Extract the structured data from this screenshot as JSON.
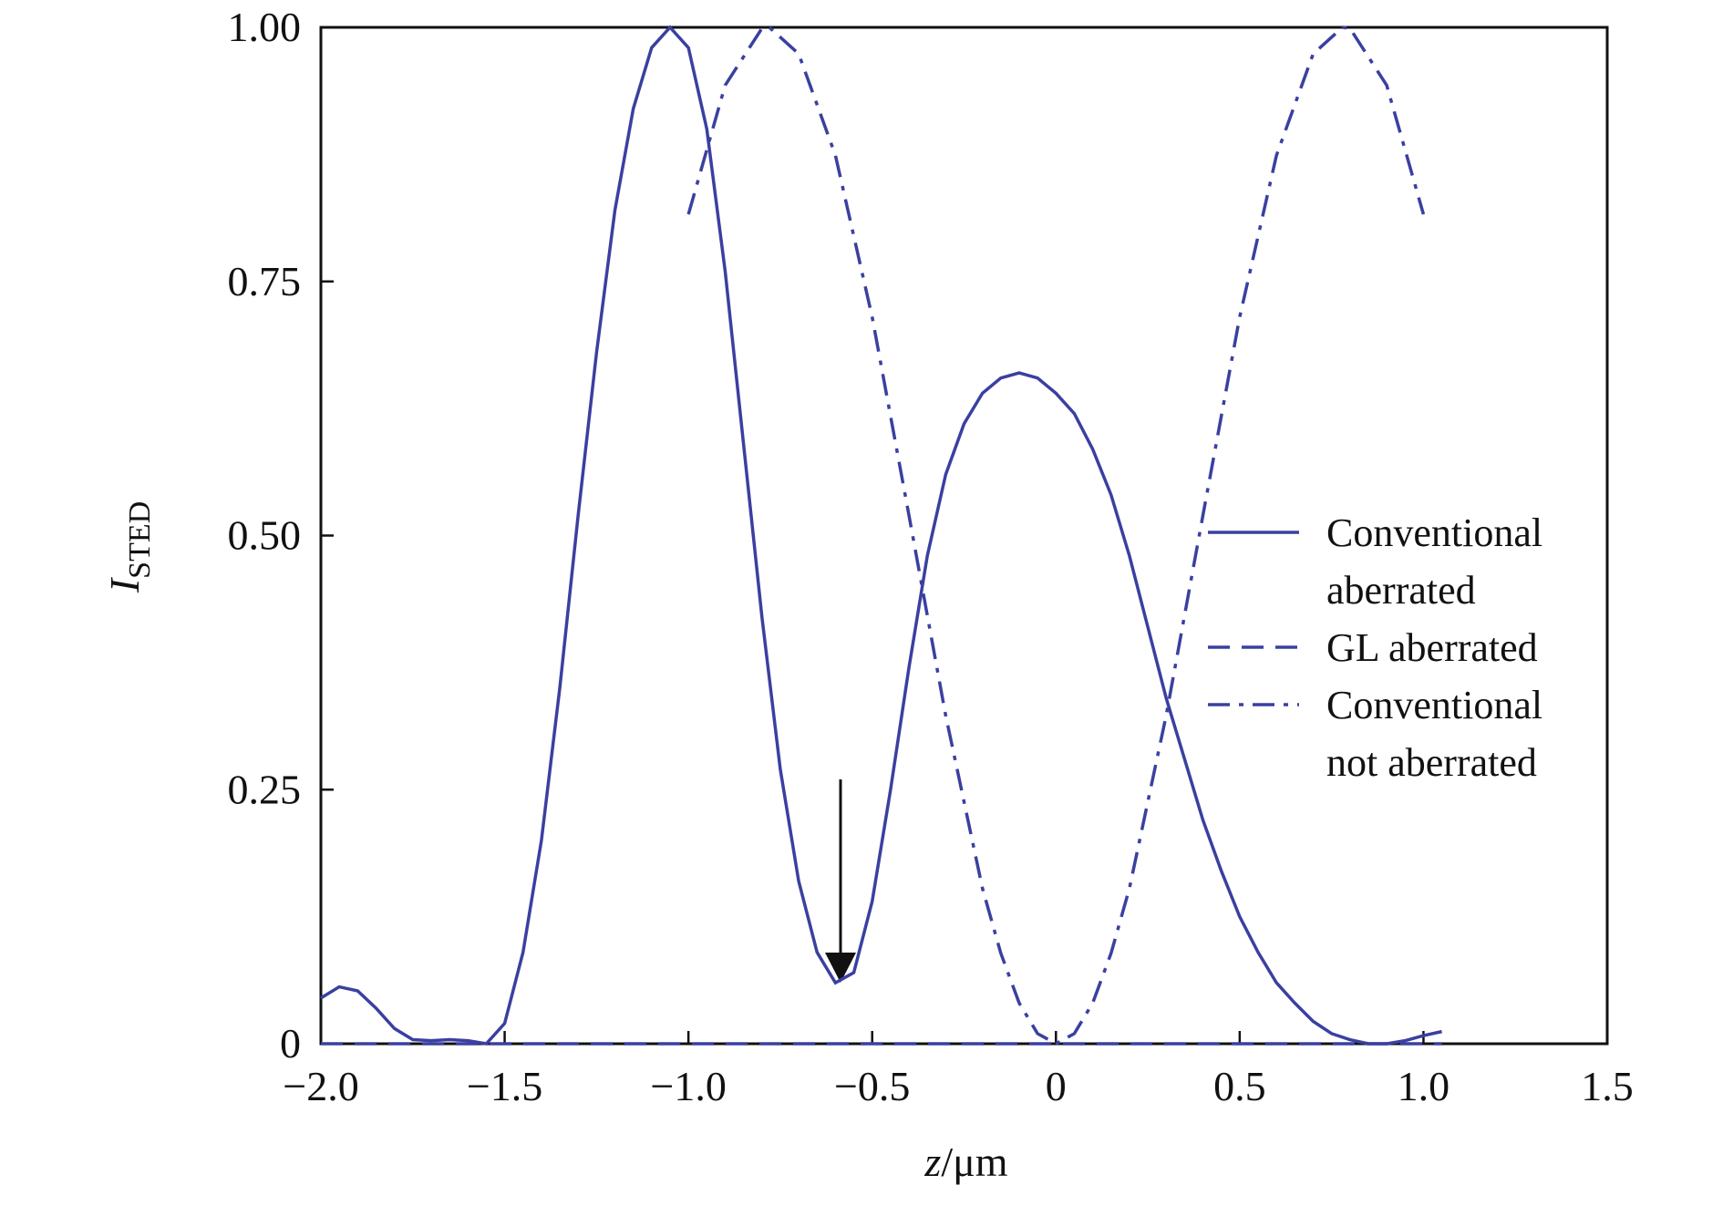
{
  "chart_data": {
    "type": "line",
    "x_label": [
      "z",
      "/μm"
    ],
    "y_label": [
      "I",
      "STED"
    ],
    "xlim": [
      -2.0,
      1.5
    ],
    "ylim": [
      0,
      1.0
    ],
    "xticks": [
      {
        "value": -2.0,
        "label": "−2.0"
      },
      {
        "value": -1.5,
        "label": "−1.5"
      },
      {
        "value": -1.0,
        "label": "−1.0"
      },
      {
        "value": -0.5,
        "label": "−0.5"
      },
      0,
      0.5,
      {
        "value": 1.0,
        "label": "1.0"
      },
      1.5
    ],
    "yticks": [
      0,
      0.25,
      {
        "value": 0.5,
        "label": "0.50"
      },
      0.75,
      {
        "value": 1.0,
        "label": "1.00"
      }
    ],
    "legend": "right",
    "series": [
      {
        "name": "Conventional\naberrated",
        "color": "#3a40a0",
        "line_style": "solid",
        "x": [
          -2.0,
          -1.95,
          -1.9,
          -1.85,
          -1.8,
          -1.75,
          -1.7,
          -1.65,
          -1.6,
          -1.55,
          -1.5,
          -1.45,
          -1.4,
          -1.35,
          -1.3,
          -1.25,
          -1.2,
          -1.15,
          -1.1,
          -1.05,
          -1.0,
          -0.95,
          -0.9,
          -0.85,
          -0.8,
          -0.75,
          -0.7,
          -0.65,
          -0.6,
          -0.55,
          -0.5,
          -0.45,
          -0.4,
          -0.35,
          -0.3,
          -0.25,
          -0.2,
          -0.15,
          -0.1,
          -0.05,
          0.0,
          0.05,
          0.1,
          0.15,
          0.2,
          0.25,
          0.3,
          0.35,
          0.4,
          0.45,
          0.5,
          0.55,
          0.6,
          0.65,
          0.7,
          0.75,
          0.8,
          0.85,
          0.9,
          0.95,
          1.0,
          1.05
        ],
        "values": [
          0.045,
          0.056,
          0.052,
          0.035,
          0.015,
          0.004,
          0.003,
          0.004,
          0.003,
          0.0,
          0.02,
          0.09,
          0.2,
          0.35,
          0.52,
          0.68,
          0.82,
          0.92,
          0.98,
          1.0,
          0.98,
          0.9,
          0.76,
          0.59,
          0.42,
          0.27,
          0.16,
          0.09,
          0.06,
          0.07,
          0.14,
          0.25,
          0.37,
          0.48,
          0.56,
          0.61,
          0.64,
          0.655,
          0.66,
          0.655,
          0.64,
          0.62,
          0.585,
          0.54,
          0.48,
          0.41,
          0.34,
          0.28,
          0.22,
          0.17,
          0.125,
          0.09,
          0.06,
          0.04,
          0.022,
          0.01,
          0.004,
          0.0,
          0.0,
          0.003,
          0.008,
          0.012
        ]
      },
      {
        "name": "GL aberrated",
        "color": "#3a40a0",
        "line_style": "dashed",
        "x": [
          -2.0,
          1.05
        ],
        "values": [
          0,
          0
        ]
      },
      {
        "name": "Conventional\nnot aberrated",
        "color": "#3a40a0",
        "line_style": "dashdot",
        "x": [
          -1.0,
          -0.9,
          -0.8,
          -0.78,
          -0.7,
          -0.6,
          -0.5,
          -0.4,
          -0.3,
          -0.2,
          -0.15,
          -0.1,
          -0.05,
          0.0,
          0.05,
          0.1,
          0.15,
          0.2,
          0.3,
          0.4,
          0.5,
          0.6,
          0.7,
          0.78,
          0.8,
          0.9,
          1.0
        ],
        "values": [
          0.816,
          0.943,
          0.999,
          1.0,
          0.974,
          0.874,
          0.715,
          0.52,
          0.323,
          0.153,
          0.089,
          0.04,
          0.01,
          0.0,
          0.01,
          0.04,
          0.089,
          0.153,
          0.323,
          0.52,
          0.715,
          0.874,
          0.974,
          1.0,
          0.999,
          0.943,
          0.816
        ]
      }
    ]
  }
}
